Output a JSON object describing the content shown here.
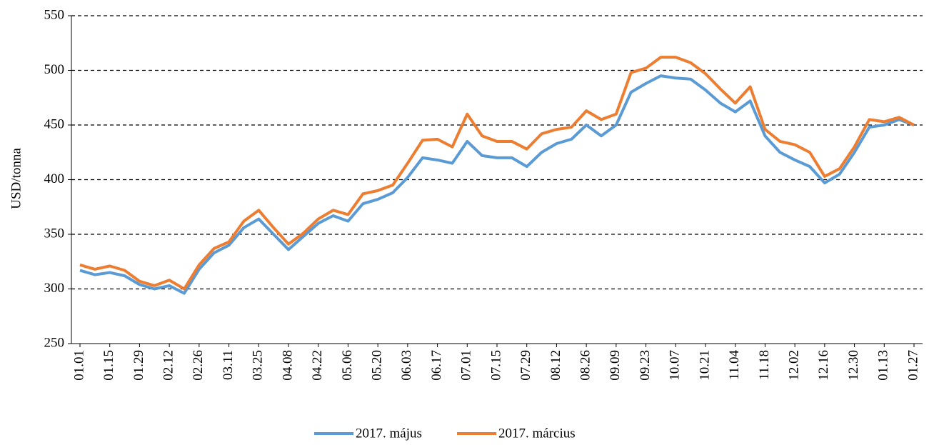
{
  "chart_data": {
    "type": "line",
    "y_label": "USD/tonna",
    "categories": [
      "01.01",
      null,
      "01.15",
      null,
      "01.29",
      null,
      "02.12",
      null,
      "02.26",
      null,
      "03.11",
      null,
      "03.25",
      null,
      "04.08",
      null,
      "04.22",
      null,
      "05.06",
      null,
      "05.20",
      null,
      "06.03",
      null,
      "06.17",
      null,
      "07.01",
      null,
      "07.15",
      null,
      "07.29",
      null,
      "08.12",
      null,
      "08.26",
      null,
      "09.09",
      null,
      "09.23",
      null,
      "10.07",
      null,
      "10.21",
      null,
      "11.04",
      null,
      "11.18",
      null,
      "12.02",
      null,
      "12.16",
      null,
      "12.30",
      null,
      "01.13",
      null,
      "01.27"
    ],
    "series": [
      {
        "name": "2017. május",
        "color": "#5b9bd5",
        "values": [
          317,
          313,
          315,
          312,
          304,
          300,
          303,
          296,
          318,
          333,
          340,
          356,
          364,
          350,
          336,
          348,
          360,
          367,
          362,
          378,
          382,
          388,
          402,
          420,
          418,
          415,
          435,
          422,
          420,
          420,
          412,
          425,
          433,
          437,
          450,
          440,
          450,
          480,
          488,
          495,
          493,
          492,
          482,
          470,
          462,
          472,
          440,
          425,
          418,
          412,
          397,
          405,
          425,
          448,
          450,
          455,
          450
        ]
      },
      {
        "name": "2017. március",
        "color": "#ed7d31",
        "values": [
          322,
          318,
          321,
          317,
          307,
          303,
          308,
          300,
          322,
          337,
          343,
          362,
          372,
          356,
          341,
          351,
          364,
          372,
          368,
          387,
          390,
          395,
          415,
          436,
          437,
          430,
          460,
          440,
          435,
          435,
          428,
          442,
          446,
          448,
          463,
          455,
          460,
          498,
          502,
          512,
          512,
          507,
          497,
          483,
          470,
          485,
          446,
          435,
          432,
          425,
          403,
          410,
          430,
          455,
          453,
          457,
          450
        ]
      }
    ],
    "ylim": [
      250,
      550
    ],
    "yticks": [
      250,
      300,
      350,
      400,
      450,
      500,
      550
    ],
    "grid": true,
    "legend": "bottom"
  }
}
